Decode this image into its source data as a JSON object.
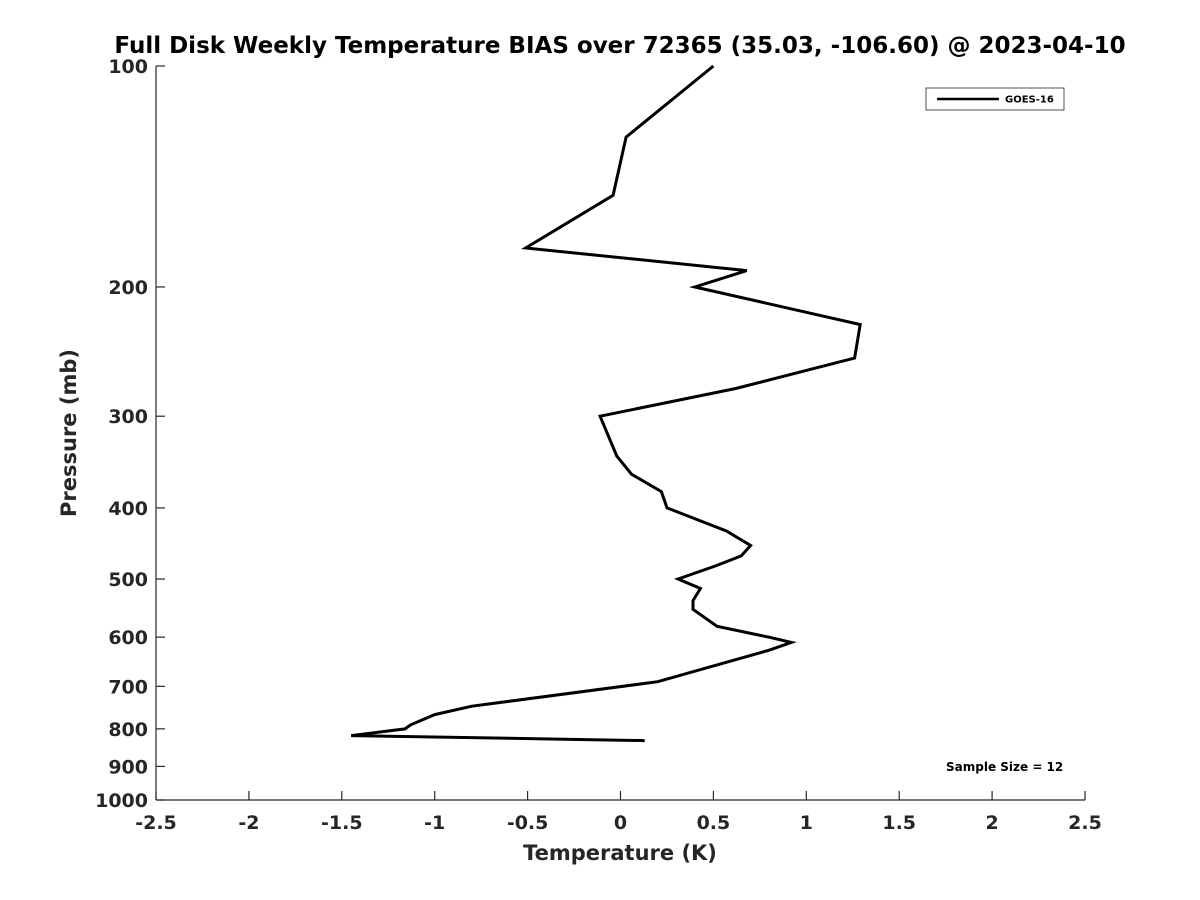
{
  "chart_data": {
    "type": "line",
    "title": "Full Disk Weekly Temperature BIAS over 72365 (35.03, -106.60) @ 2023-04-10",
    "xlabel": "Temperature (K)",
    "ylabel": "Pressure (mb)",
    "xlim": [
      -2.5,
      2.5
    ],
    "ylim": [
      100,
      1000
    ],
    "y_scale": "log",
    "y_reversed": true,
    "x_ticks": [
      "-2.5",
      "-2",
      "-1.5",
      "-1",
      "-0.5",
      "0",
      "0.5",
      "1",
      "1.5",
      "2",
      "2.5"
    ],
    "x_tick_values": [
      -2.5,
      -2,
      -1.5,
      -1,
      -0.5,
      0,
      0.5,
      1,
      1.5,
      2,
      2.5
    ],
    "y_ticks": [
      "100",
      "200",
      "300",
      "400",
      "500",
      "600",
      "700",
      "800",
      "900",
      "1000"
    ],
    "y_tick_values": [
      100,
      200,
      300,
      400,
      500,
      600,
      700,
      800,
      900,
      1000
    ],
    "grid": false,
    "legend_position": "top-right",
    "line_color": "#000000",
    "series": [
      {
        "name": "GOES-16",
        "points": [
          [
            0.5,
            100
          ],
          [
            0.03,
            125
          ],
          [
            -0.04,
            150
          ],
          [
            -0.51,
            177
          ],
          [
            0.68,
            190
          ],
          [
            0.4,
            200
          ],
          [
            1.29,
            225
          ],
          [
            1.26,
            250
          ],
          [
            0.62,
            275
          ],
          [
            -0.11,
            300
          ],
          [
            -0.02,
            340
          ],
          [
            0.06,
            360
          ],
          [
            0.22,
            380
          ],
          [
            0.25,
            400
          ],
          [
            0.57,
            430
          ],
          [
            0.7,
            450
          ],
          [
            0.65,
            465
          ],
          [
            0.51,
            480
          ],
          [
            0.31,
            500
          ],
          [
            0.43,
            515
          ],
          [
            0.39,
            535
          ],
          [
            0.39,
            550
          ],
          [
            0.52,
            580
          ],
          [
            0.8,
            600
          ],
          [
            0.92,
            610
          ],
          [
            0.8,
            625
          ],
          [
            0.2,
            690
          ],
          [
            -0.8,
            745
          ],
          [
            -1.0,
            765
          ],
          [
            -1.13,
            790
          ],
          [
            -1.16,
            800
          ],
          [
            -1.45,
            817
          ],
          [
            0.13,
            830
          ]
        ]
      }
    ],
    "annotation": "Sample Size = 12"
  }
}
